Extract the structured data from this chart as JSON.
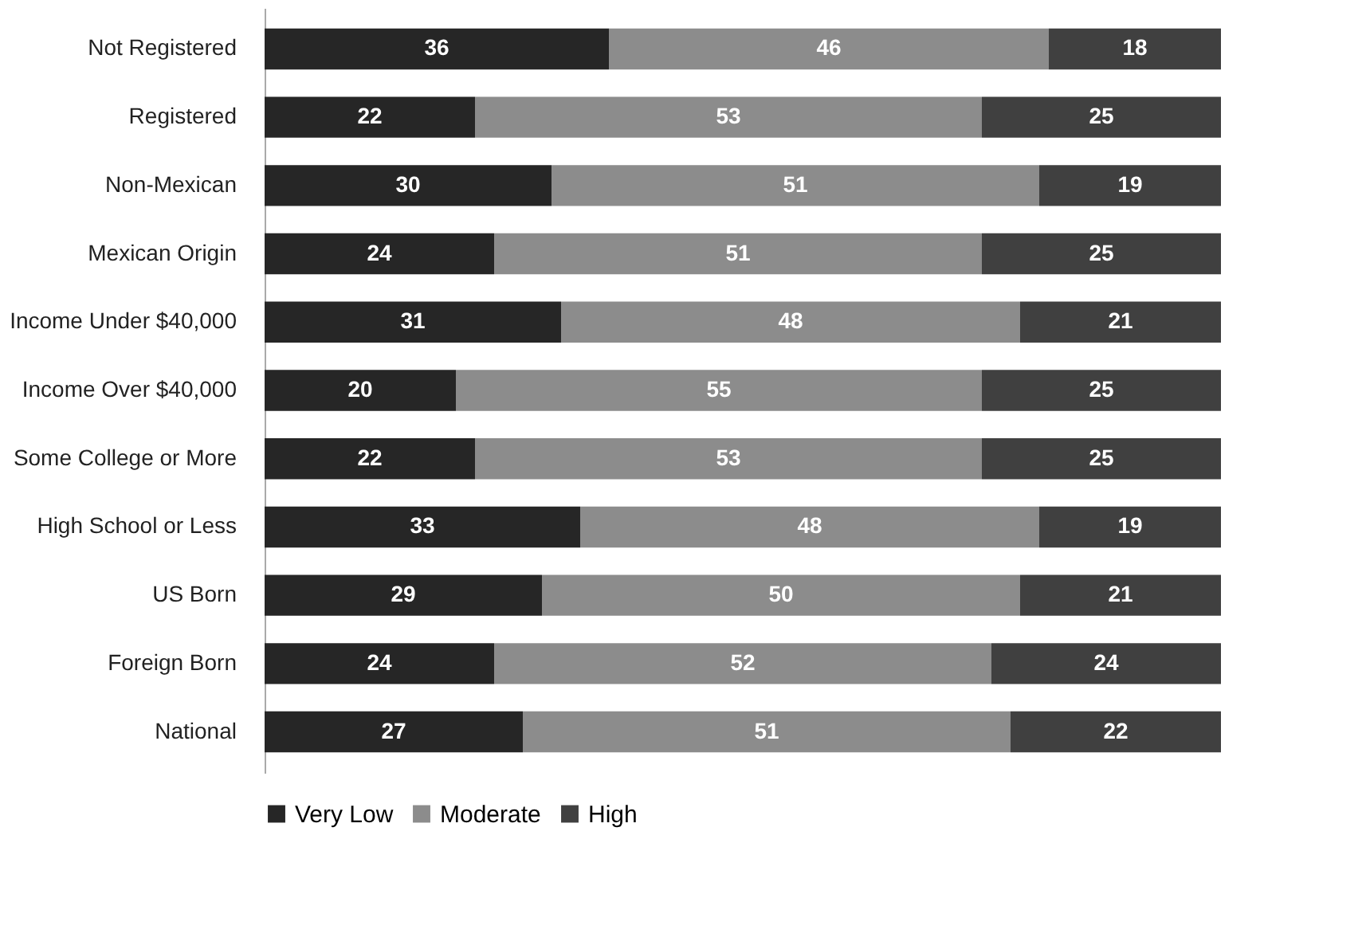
{
  "chart_data": {
    "type": "bar",
    "orientation": "horizontal",
    "stacked": true,
    "data_labels": true,
    "legend": "bottom",
    "categories": [
      "Not Registered",
      "Registered",
      "Non-Mexican",
      "Mexican Origin",
      "Income Under $40,000",
      "Income Over $40,000",
      "Some College or More",
      "High School or Less",
      "US Born",
      "Foreign Born",
      "National"
    ],
    "series": [
      {
        "name": "Very Low",
        "color": "#262626",
        "values": [
          36,
          22,
          30,
          24,
          31,
          20,
          22,
          33,
          29,
          24,
          27
        ]
      },
      {
        "name": "Moderate",
        "color": "#8c8c8c",
        "values": [
          46,
          53,
          51,
          51,
          48,
          55,
          53,
          48,
          50,
          52,
          51
        ]
      },
      {
        "name": "High",
        "color": "#404040",
        "values": [
          18,
          25,
          19,
          25,
          21,
          25,
          25,
          19,
          21,
          24,
          22
        ]
      }
    ]
  }
}
